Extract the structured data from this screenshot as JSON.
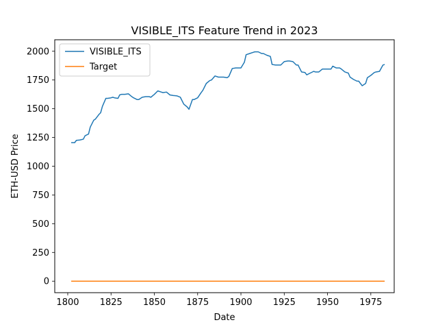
{
  "chart_data": {
    "type": "line",
    "title": "VISIBLE_ITS Feature Trend in 2023",
    "xlabel": "Date",
    "ylabel": "ETH-USD Price",
    "xlim": [
      1792.5,
      1988.5
    ],
    "ylim": [
      -100,
      2100
    ],
    "xticks": [
      1800,
      1825,
      1850,
      1875,
      1900,
      1925,
      1950,
      1975
    ],
    "yticks": [
      0,
      250,
      500,
      750,
      1000,
      1250,
      1500,
      1750,
      2000
    ],
    "grid": false,
    "legend_position": "top-left",
    "colors": {
      "VISIBLE_ITS": "#1f77b4",
      "Target": "#ff7f0e"
    },
    "series": [
      {
        "name": "VISIBLE_ITS",
        "x": [
          1802,
          1804,
          1805,
          1807,
          1809,
          1810,
          1812,
          1813,
          1815,
          1816,
          1818,
          1819,
          1820,
          1822,
          1823,
          1825,
          1826,
          1827,
          1829,
          1830,
          1831,
          1833,
          1835,
          1837,
          1838,
          1840,
          1841,
          1843,
          1845,
          1847,
          1848,
          1850,
          1852,
          1854,
          1855,
          1857,
          1859,
          1861,
          1863,
          1865,
          1867,
          1869,
          1870,
          1872,
          1873,
          1875,
          1877,
          1878,
          1880,
          1882,
          1883,
          1885,
          1887,
          1888,
          1890,
          1892,
          1893,
          1895,
          1897,
          1899,
          1900,
          1902,
          1903,
          1905,
          1907,
          1908,
          1910,
          1912,
          1913,
          1915,
          1917,
          1918,
          1920,
          1922,
          1923,
          1925,
          1927,
          1928,
          1930,
          1932,
          1933,
          1935,
          1937,
          1938,
          1940,
          1942,
          1943,
          1945,
          1947,
          1948,
          1950,
          1952,
          1953,
          1955,
          1957,
          1958,
          1960,
          1962,
          1963,
          1965,
          1967,
          1968,
          1970,
          1972,
          1973,
          1975,
          1977,
          1978,
          1980,
          1982,
          1983
        ],
        "y": [
          1205,
          1205,
          1225,
          1228,
          1235,
          1265,
          1280,
          1340,
          1400,
          1410,
          1450,
          1465,
          1520,
          1590,
          1590,
          1595,
          1600,
          1595,
          1590,
          1620,
          1625,
          1625,
          1630,
          1605,
          1595,
          1580,
          1580,
          1600,
          1605,
          1605,
          1600,
          1625,
          1655,
          1645,
          1640,
          1645,
          1620,
          1615,
          1612,
          1600,
          1540,
          1515,
          1495,
          1580,
          1580,
          1595,
          1640,
          1660,
          1720,
          1745,
          1750,
          1785,
          1775,
          1775,
          1775,
          1770,
          1780,
          1850,
          1855,
          1855,
          1855,
          1905,
          1970,
          1980,
          1990,
          1995,
          1995,
          1980,
          1980,
          1965,
          1955,
          1885,
          1880,
          1880,
          1880,
          1910,
          1915,
          1915,
          1910,
          1880,
          1880,
          1820,
          1815,
          1795,
          1810,
          1825,
          1820,
          1820,
          1845,
          1845,
          1845,
          1845,
          1870,
          1855,
          1855,
          1845,
          1820,
          1810,
          1775,
          1755,
          1740,
          1740,
          1700,
          1720,
          1770,
          1790,
          1815,
          1820,
          1825,
          1880,
          1885
        ]
      },
      {
        "name": "Target",
        "x": [
          1802,
          1983
        ],
        "y": [
          0,
          0
        ]
      }
    ]
  }
}
